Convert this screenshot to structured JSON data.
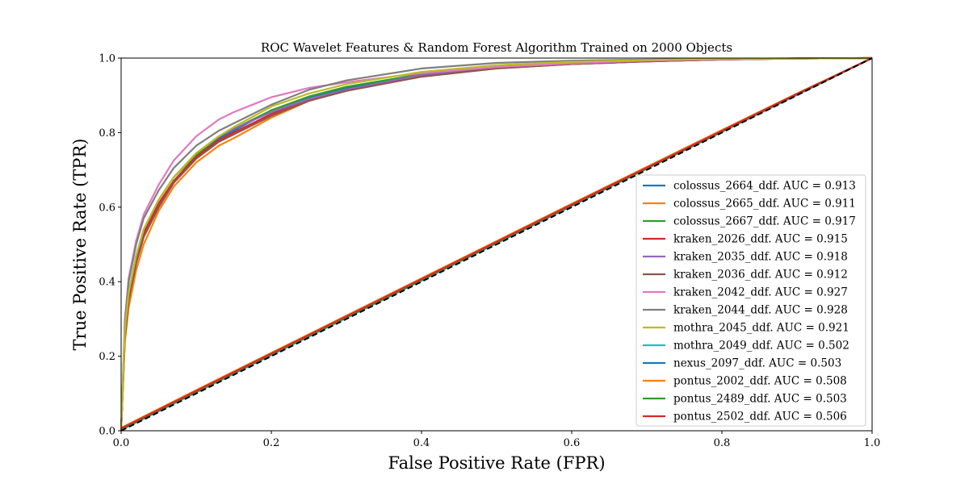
{
  "chart_data": {
    "type": "line",
    "title": "ROC Wavelet Features & Random Forest Algorithm Trained on 2000 Objects",
    "xlabel": "False Positive Rate (FPR)",
    "ylabel": "True Positive Rate (TPR)",
    "xlim": [
      0.0,
      1.0
    ],
    "ylim": [
      0.0,
      1.0
    ],
    "xticks": [
      "0.0",
      "0.2",
      "0.4",
      "0.6",
      "0.8",
      "1.0"
    ],
    "yticks": [
      "0.0",
      "0.2",
      "0.4",
      "0.6",
      "0.8",
      "1.0"
    ],
    "grid": false,
    "legend_position": "lower-right",
    "series": [
      {
        "name": "colossus_2664_ddf. AUC = 0.913",
        "color": "#1f77b4",
        "x": [
          0.0,
          0.005,
          0.01,
          0.02,
          0.03,
          0.05,
          0.07,
          0.1,
          0.13,
          0.15,
          0.2,
          0.25,
          0.3,
          0.4,
          0.5,
          0.6,
          0.7,
          0.8,
          0.9,
          1.0
        ],
        "y": [
          0.0,
          0.25,
          0.35,
          0.45,
          0.52,
          0.6,
          0.67,
          0.735,
          0.785,
          0.805,
          0.86,
          0.895,
          0.92,
          0.955,
          0.975,
          0.985,
          0.992,
          0.996,
          0.999,
          1.0
        ]
      },
      {
        "name": "colossus_2665_ddf. AUC = 0.911",
        "color": "#ff7f0e",
        "x": [
          0.0,
          0.005,
          0.01,
          0.02,
          0.03,
          0.05,
          0.07,
          0.1,
          0.13,
          0.15,
          0.2,
          0.25,
          0.3,
          0.4,
          0.5,
          0.6,
          0.7,
          0.8,
          0.9,
          1.0
        ],
        "y": [
          0.0,
          0.24,
          0.33,
          0.43,
          0.5,
          0.59,
          0.655,
          0.72,
          0.765,
          0.785,
          0.84,
          0.885,
          0.915,
          0.952,
          0.973,
          0.984,
          0.991,
          0.996,
          0.999,
          1.0
        ]
      },
      {
        "name": "colossus_2667_ddf. AUC = 0.917",
        "color": "#2ca02c",
        "x": [
          0.0,
          0.005,
          0.01,
          0.02,
          0.03,
          0.05,
          0.07,
          0.1,
          0.13,
          0.15,
          0.2,
          0.25,
          0.3,
          0.4,
          0.5,
          0.6,
          0.7,
          0.8,
          0.9,
          1.0
        ],
        "y": [
          0.0,
          0.27,
          0.37,
          0.47,
          0.54,
          0.62,
          0.68,
          0.74,
          0.79,
          0.81,
          0.86,
          0.897,
          0.923,
          0.957,
          0.976,
          0.986,
          0.993,
          0.997,
          0.999,
          1.0
        ]
      },
      {
        "name": "kraken_2026_ddf. AUC = 0.915",
        "color": "#d62728",
        "x": [
          0.0,
          0.005,
          0.01,
          0.02,
          0.03,
          0.05,
          0.07,
          0.1,
          0.13,
          0.15,
          0.2,
          0.25,
          0.3,
          0.4,
          0.5,
          0.6,
          0.7,
          0.8,
          0.9,
          1.0
        ],
        "y": [
          0.0,
          0.26,
          0.36,
          0.46,
          0.53,
          0.61,
          0.67,
          0.735,
          0.78,
          0.8,
          0.85,
          0.89,
          0.915,
          0.952,
          0.973,
          0.984,
          0.991,
          0.996,
          0.999,
          1.0
        ]
      },
      {
        "name": "kraken_2035_ddf. AUC = 0.918",
        "color": "#9467bd",
        "x": [
          0.0,
          0.005,
          0.01,
          0.02,
          0.03,
          0.05,
          0.07,
          0.1,
          0.13,
          0.15,
          0.2,
          0.25,
          0.3,
          0.4,
          0.5,
          0.6,
          0.7,
          0.8,
          0.9,
          1.0
        ],
        "y": [
          0.0,
          0.27,
          0.37,
          0.47,
          0.54,
          0.62,
          0.68,
          0.745,
          0.79,
          0.81,
          0.855,
          0.89,
          0.915,
          0.955,
          0.976,
          0.986,
          0.993,
          0.997,
          0.999,
          1.0
        ]
      },
      {
        "name": "kraken_2036_ddf. AUC = 0.912",
        "color": "#8c564b",
        "x": [
          0.0,
          0.005,
          0.01,
          0.02,
          0.03,
          0.05,
          0.07,
          0.1,
          0.13,
          0.15,
          0.2,
          0.25,
          0.3,
          0.4,
          0.5,
          0.6,
          0.7,
          0.8,
          0.9,
          1.0
        ],
        "y": [
          0.0,
          0.25,
          0.35,
          0.45,
          0.52,
          0.6,
          0.665,
          0.73,
          0.775,
          0.795,
          0.845,
          0.885,
          0.912,
          0.95,
          0.972,
          0.984,
          0.991,
          0.996,
          0.999,
          1.0
        ]
      },
      {
        "name": "kraken_2042_ddf. AUC = 0.927",
        "color": "#e377c2",
        "x": [
          0.0,
          0.005,
          0.01,
          0.02,
          0.03,
          0.05,
          0.07,
          0.1,
          0.13,
          0.15,
          0.2,
          0.25,
          0.3,
          0.4,
          0.5,
          0.6,
          0.7,
          0.8,
          0.9,
          1.0
        ],
        "y": [
          0.0,
          0.3,
          0.41,
          0.51,
          0.58,
          0.66,
          0.725,
          0.79,
          0.835,
          0.855,
          0.895,
          0.92,
          0.935,
          0.96,
          0.976,
          0.986,
          0.993,
          0.997,
          0.999,
          1.0
        ]
      },
      {
        "name": "kraken_2044_ddf. AUC = 0.928",
        "color": "#7f7f7f",
        "x": [
          0.0,
          0.005,
          0.01,
          0.02,
          0.03,
          0.05,
          0.07,
          0.1,
          0.13,
          0.15,
          0.2,
          0.25,
          0.3,
          0.4,
          0.5,
          0.6,
          0.7,
          0.8,
          0.9,
          1.0
        ],
        "y": [
          0.0,
          0.29,
          0.4,
          0.5,
          0.57,
          0.645,
          0.705,
          0.765,
          0.805,
          0.825,
          0.875,
          0.915,
          0.94,
          0.972,
          0.987,
          0.993,
          0.996,
          0.998,
          0.999,
          1.0
        ]
      },
      {
        "name": "mothra_2045_ddf. AUC = 0.921",
        "color": "#bcbd22",
        "x": [
          0.0,
          0.005,
          0.01,
          0.02,
          0.03,
          0.05,
          0.07,
          0.1,
          0.13,
          0.15,
          0.2,
          0.25,
          0.3,
          0.4,
          0.5,
          0.6,
          0.7,
          0.8,
          0.9,
          1.0
        ],
        "y": [
          0.0,
          0.27,
          0.37,
          0.47,
          0.54,
          0.62,
          0.68,
          0.745,
          0.79,
          0.815,
          0.87,
          0.905,
          0.93,
          0.963,
          0.981,
          0.99,
          0.995,
          0.998,
          0.999,
          1.0
        ]
      },
      {
        "name": "mothra_2049_ddf. AUC = 0.502",
        "color": "#17becf",
        "x": [
          0.0,
          0.1,
          0.2,
          0.3,
          0.4,
          0.5,
          0.6,
          0.7,
          0.8,
          0.9,
          1.0
        ],
        "y": [
          0.002,
          0.103,
          0.203,
          0.303,
          0.403,
          0.503,
          0.603,
          0.703,
          0.802,
          0.901,
          1.0
        ]
      },
      {
        "name": "nexus_2097_ddf. AUC = 0.503",
        "color": "#1f77b4",
        "x": [
          0.0,
          0.1,
          0.2,
          0.3,
          0.4,
          0.5,
          0.6,
          0.7,
          0.8,
          0.9,
          1.0
        ],
        "y": [
          0.003,
          0.104,
          0.204,
          0.304,
          0.404,
          0.504,
          0.604,
          0.704,
          0.803,
          0.902,
          1.0
        ]
      },
      {
        "name": "pontus_2002_ddf. AUC = 0.508",
        "color": "#ff7f0e",
        "x": [
          0.0,
          0.1,
          0.2,
          0.3,
          0.4,
          0.5,
          0.6,
          0.7,
          0.8,
          0.9,
          1.0
        ],
        "y": [
          0.008,
          0.109,
          0.209,
          0.309,
          0.409,
          0.509,
          0.609,
          0.708,
          0.807,
          0.905,
          1.0
        ]
      },
      {
        "name": "pontus_2489_ddf. AUC = 0.503",
        "color": "#2ca02c",
        "x": [
          0.0,
          0.1,
          0.2,
          0.3,
          0.4,
          0.5,
          0.6,
          0.7,
          0.8,
          0.9,
          1.0
        ],
        "y": [
          0.004,
          0.105,
          0.205,
          0.305,
          0.405,
          0.505,
          0.605,
          0.704,
          0.803,
          0.902,
          1.0
        ]
      },
      {
        "name": "pontus_2502_ddf. AUC = 0.506",
        "color": "#d62728",
        "x": [
          0.0,
          0.1,
          0.2,
          0.3,
          0.4,
          0.5,
          0.6,
          0.7,
          0.8,
          0.9,
          1.0
        ],
        "y": [
          0.006,
          0.107,
          0.207,
          0.307,
          0.407,
          0.507,
          0.607,
          0.706,
          0.805,
          0.904,
          1.0
        ]
      }
    ],
    "reference_line": {
      "x": [
        0.0,
        1.0
      ],
      "y": [
        0.0,
        1.0
      ],
      "color": "#000000",
      "style": "dashed"
    }
  }
}
